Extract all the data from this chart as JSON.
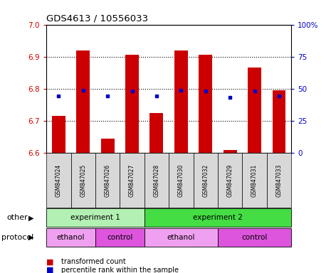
{
  "title": "GDS4613 / 10556033",
  "samples": [
    "GSM847024",
    "GSM847025",
    "GSM847026",
    "GSM847027",
    "GSM847028",
    "GSM847030",
    "GSM847032",
    "GSM847029",
    "GSM847031",
    "GSM847033"
  ],
  "bar_values": [
    6.715,
    6.92,
    6.645,
    6.905,
    6.725,
    6.92,
    6.905,
    6.61,
    6.865,
    6.795
  ],
  "dot_values": [
    6.778,
    6.795,
    6.778,
    6.793,
    6.778,
    6.795,
    6.793,
    6.772,
    6.793,
    6.778
  ],
  "ylim": [
    6.6,
    7.0
  ],
  "y_left_ticks": [
    6.6,
    6.7,
    6.8,
    6.9,
    7.0
  ],
  "y_right_ticks": [
    0,
    25,
    50,
    75,
    100
  ],
  "y_right_labels": [
    "0",
    "25",
    "50",
    "75",
    "100%"
  ],
  "bar_color": "#cc0000",
  "dot_color": "#0000cc",
  "bar_bottom": 6.6,
  "other_row": [
    {
      "label": "experiment 1",
      "start": 0,
      "end": 4,
      "color": "#b3f0b3"
    },
    {
      "label": "experiment 2",
      "start": 4,
      "end": 10,
      "color": "#44dd44"
    }
  ],
  "protocol_row": [
    {
      "label": "ethanol",
      "start": 0,
      "end": 2,
      "color": "#f0a0f0"
    },
    {
      "label": "control",
      "start": 2,
      "end": 4,
      "color": "#dd55dd"
    },
    {
      "label": "ethanol",
      "start": 4,
      "end": 7,
      "color": "#f0a0f0"
    },
    {
      "label": "control",
      "start": 7,
      "end": 10,
      "color": "#dd55dd"
    }
  ],
  "other_label": "other",
  "protocol_label": "protocol",
  "legend_bar_label": "transformed count",
  "legend_dot_label": "percentile rank within the sample",
  "tick_color_left": "#cc0000",
  "tick_color_right": "#0000cc",
  "sample_box_color": "#d8d8d8"
}
